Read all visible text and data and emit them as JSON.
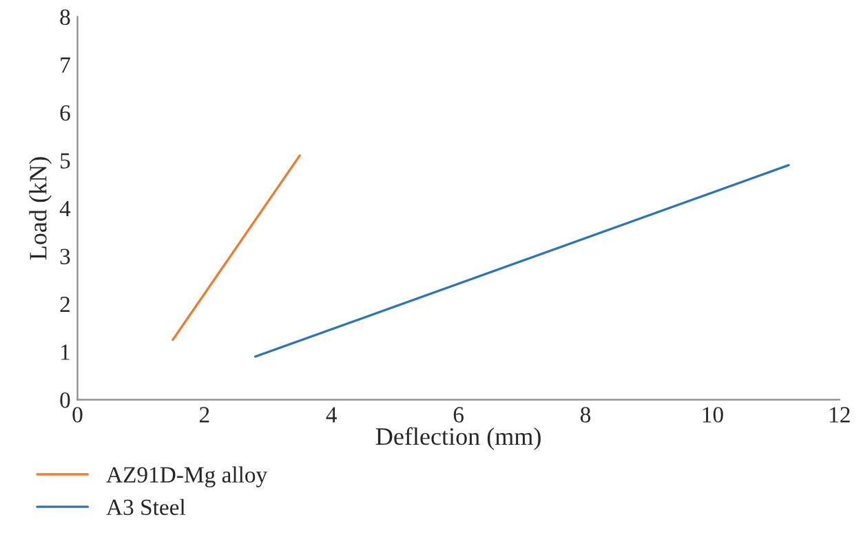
{
  "chart_data": {
    "type": "line",
    "xlabel": "Deflection (mm)",
    "ylabel": "Load (kN)",
    "series": [
      {
        "name": "AZ91D-Mg alloy",
        "color": "#ed7d31",
        "x": [
          1.5,
          3.5
        ],
        "values": [
          1.25,
          5.1
        ]
      },
      {
        "name": "A3 Steel",
        "color": "#2e75b6",
        "x": [
          2.8,
          11.2
        ],
        "values": [
          0.9,
          4.9
        ]
      }
    ],
    "xlim": [
      0,
      12
    ],
    "xticks": [
      0,
      2,
      4,
      6,
      8,
      10,
      12
    ],
    "ylim": [
      0,
      8
    ],
    "yticks": [
      0,
      1,
      2,
      3,
      4,
      5,
      6,
      7,
      8
    ],
    "grid": false,
    "legend": "bottom left"
  }
}
